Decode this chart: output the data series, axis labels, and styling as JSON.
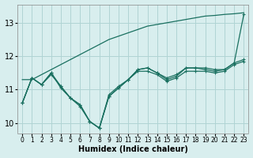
{
  "xlabel": "Humidex (Indice chaleur)",
  "background_color": "#d8eeee",
  "grid_color": "#b0d4d4",
  "line_color": "#1a7060",
  "xlim": [
    -0.5,
    23.5
  ],
  "ylim": [
    9.7,
    13.55
  ],
  "yticks": [
    10,
    11,
    12,
    13
  ],
  "xticks": [
    0,
    1,
    2,
    3,
    4,
    5,
    6,
    7,
    8,
    9,
    10,
    11,
    12,
    13,
    14,
    15,
    16,
    17,
    18,
    19,
    20,
    21,
    22,
    23
  ],
  "line_steep": [
    11.3,
    11.3,
    11.45,
    11.6,
    11.75,
    11.9,
    12.05,
    12.2,
    12.35,
    12.5,
    12.6,
    12.7,
    12.8,
    12.9,
    12.95,
    13.0,
    13.05,
    13.1,
    13.15,
    13.2,
    13.22,
    13.25,
    13.27,
    13.3
  ],
  "line_dip": [
    10.6,
    11.35,
    11.15,
    11.5,
    11.1,
    10.75,
    10.55,
    10.05,
    9.85,
    10.85,
    11.1,
    11.3,
    11.6,
    11.65,
    11.5,
    11.35,
    11.45,
    11.65,
    11.65,
    11.6,
    11.55,
    11.6,
    11.8,
    13.25
  ],
  "line_flat1": [
    10.6,
    11.35,
    11.15,
    11.45,
    11.1,
    10.75,
    10.55,
    10.05,
    9.85,
    10.8,
    11.05,
    11.3,
    11.6,
    11.65,
    11.5,
    11.3,
    11.4,
    11.65,
    11.65,
    11.65,
    11.6,
    11.6,
    11.8,
    11.9
  ],
  "line_flat2": [
    10.6,
    11.35,
    11.15,
    11.5,
    11.05,
    10.75,
    10.5,
    10.05,
    9.85,
    10.8,
    11.05,
    11.3,
    11.55,
    11.55,
    11.45,
    11.25,
    11.35,
    11.55,
    11.55,
    11.55,
    11.5,
    11.55,
    11.75,
    11.85
  ]
}
